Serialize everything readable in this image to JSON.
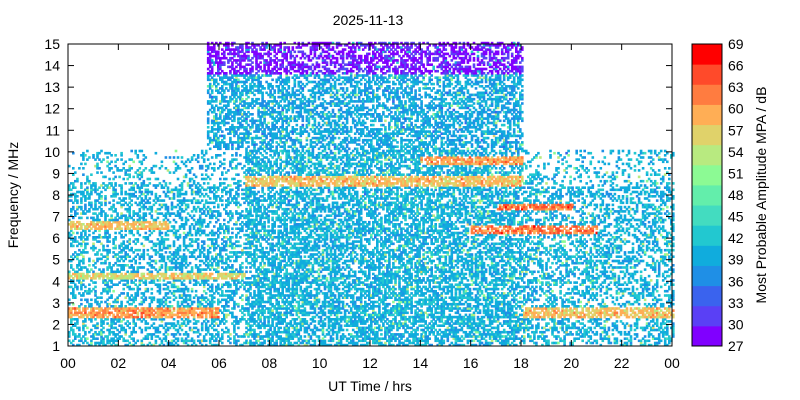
{
  "chart_data": {
    "type": "heatmap",
    "title": "2025-11-13",
    "xlabel": "UT Time / hrs",
    "ylabel": "Frequency / MHz",
    "xlim": [
      0,
      24
    ],
    "ylim": [
      1,
      15
    ],
    "x_ticks": [
      "00",
      "02",
      "04",
      "06",
      "08",
      "10",
      "12",
      "14",
      "16",
      "18",
      "20",
      "22",
      "00"
    ],
    "y_ticks": [
      "1",
      "2",
      "3",
      "4",
      "5",
      "6",
      "7",
      "8",
      "9",
      "10",
      "11",
      "12",
      "13",
      "14",
      "15"
    ],
    "colorbar": {
      "label": "Most Probable Amplitude MPA / dB",
      "range": [
        27,
        69
      ],
      "ticks": [
        "69",
        "66",
        "63",
        "60",
        "57",
        "54",
        "51",
        "48",
        "45",
        "42",
        "39",
        "36",
        "33",
        "30",
        "27"
      ],
      "colors": [
        "#8000ff",
        "#5a40f5",
        "#3a63ee",
        "#1f8fe6",
        "#10acdd",
        "#22c8d0",
        "#43dcc0",
        "#63eeab",
        "#8cfa94",
        "#b8ea80",
        "#e0d26a",
        "#ffae55",
        "#ff7c40",
        "#ff4a2a",
        "#ff0000"
      ]
    },
    "regions": [
      {
        "description": "daytime high-frequency band",
        "x_range": [
          5.5,
          18
        ],
        "y_range": [
          10,
          15
        ],
        "typical_dB": 39
      },
      {
        "description": "top edge weak band",
        "x_range": [
          5.5,
          18
        ],
        "y_range": [
          13.5,
          15
        ],
        "typical_dB": 29
      },
      {
        "description": "broad background",
        "x_range": [
          0,
          24
        ],
        "y_range": [
          1,
          10
        ],
        "typical_dB": 40
      },
      {
        "description": "strong band near 2.5 MHz",
        "x_range": [
          0,
          6
        ],
        "y_range": [
          2.3,
          2.8
        ],
        "typical_dB": 60
      },
      {
        "description": "strong band near 6.5 MHz",
        "x_range": [
          0,
          4
        ],
        "y_range": [
          6.3,
          6.7
        ],
        "typical_dB": 58
      },
      {
        "description": "strong band near 4.2 MHz",
        "x_range": [
          0,
          7
        ],
        "y_range": [
          4.1,
          4.4
        ],
        "typical_dB": 56
      },
      {
        "description": "strong band near 8.5 MHz",
        "x_range": [
          7,
          18
        ],
        "y_range": [
          8.3,
          8.8
        ],
        "typical_dB": 58
      },
      {
        "description": "strong band near 7.3 MHz",
        "x_range": [
          17,
          20
        ],
        "y_range": [
          7.2,
          7.5
        ],
        "typical_dB": 62
      },
      {
        "description": "strong band near 6.3 MHz",
        "x_range": [
          16,
          21
        ],
        "y_range": [
          6.1,
          6.5
        ],
        "typical_dB": 62
      },
      {
        "description": "strong band near 9.5 MHz",
        "x_range": [
          14,
          18
        ],
        "y_range": [
          9.3,
          9.7
        ],
        "typical_dB": 60
      },
      {
        "description": "strong band near 2.5 MHz (evening)",
        "x_range": [
          18,
          24
        ],
        "y_range": [
          2.3,
          2.8
        ],
        "typical_dB": 58
      }
    ]
  }
}
